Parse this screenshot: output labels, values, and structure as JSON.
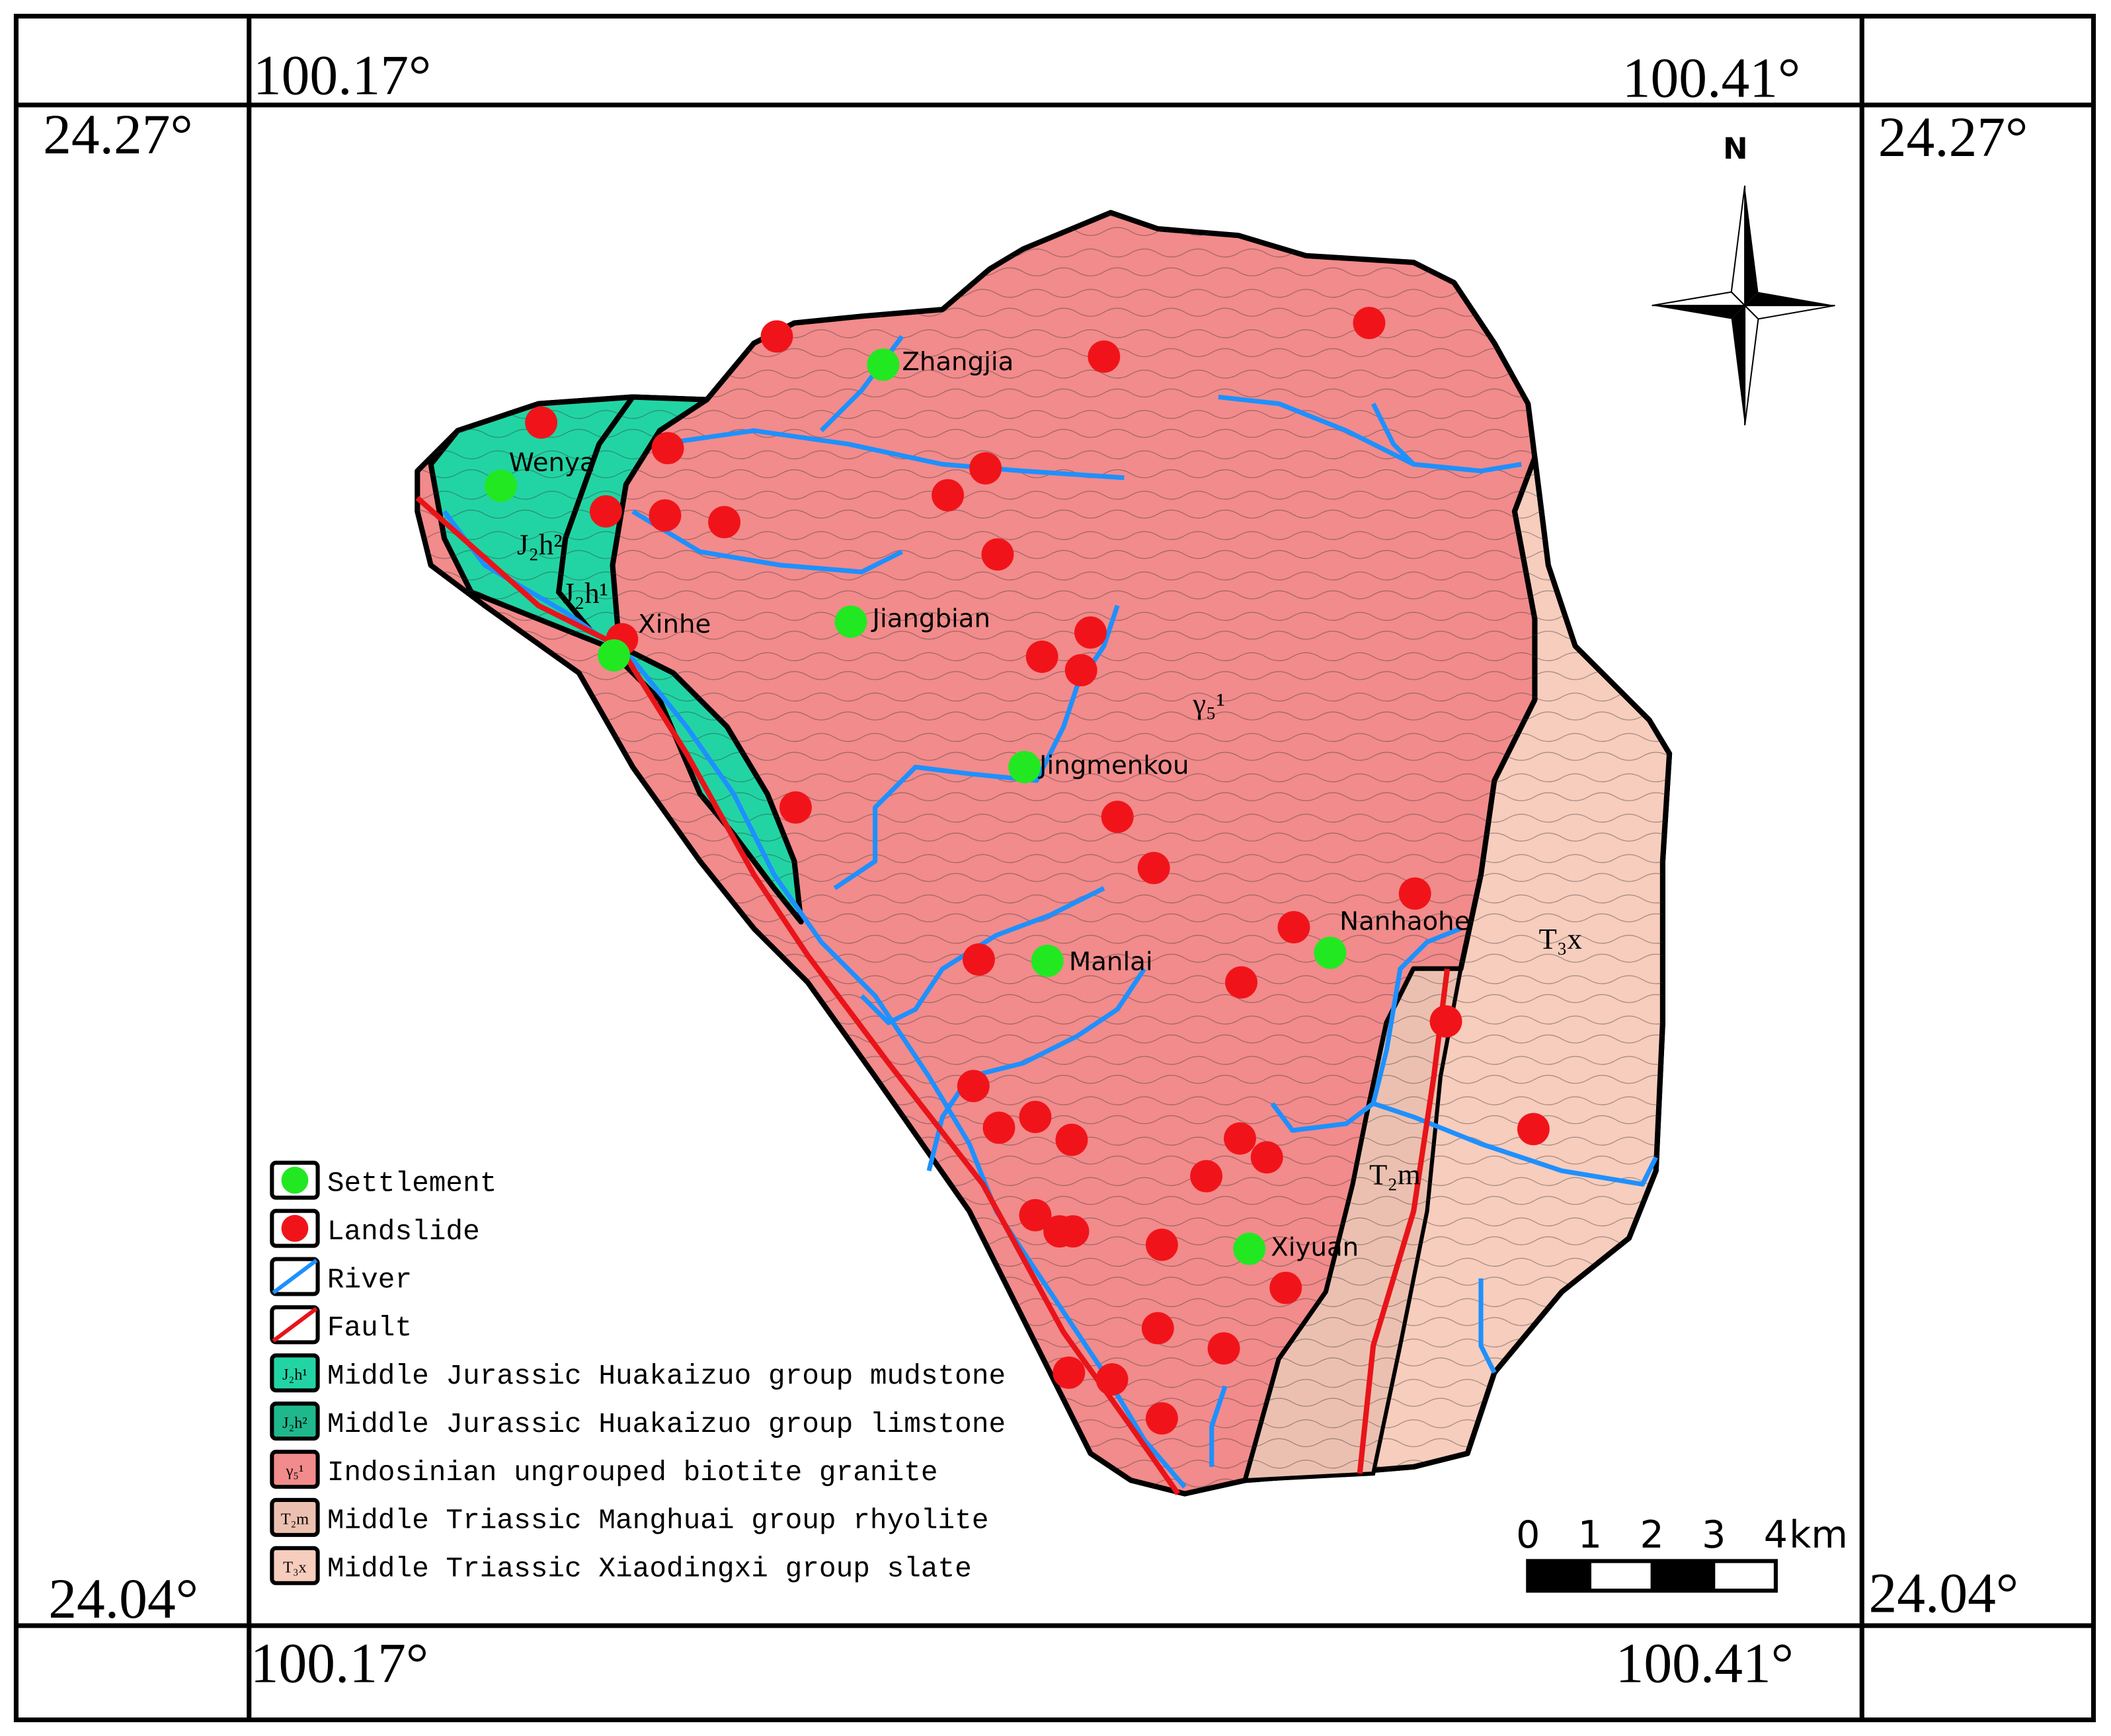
{
  "coordinates": {
    "top_left": "100.17°",
    "top_right": "100.41°",
    "bottom_left": "100.17°",
    "bottom_right": "100.41°",
    "left_top": "24.27°",
    "left_bottom": "24.04°",
    "right_top": "24.27°",
    "right_bottom": "24.04°"
  },
  "north_label": "N",
  "settlements": [
    "Zhangjia",
    "Wenya",
    "Xinhe",
    "Jiangbian",
    "Jingmenkou",
    "Manlai",
    "Nanhaohe",
    "Xiyuan"
  ],
  "map_labels": [
    "J₂h²",
    "J₂h¹",
    "γ₅¹",
    "T₃x",
    "T₂m"
  ],
  "legend": [
    {
      "label": "Settlement"
    },
    {
      "label": "Landslide"
    },
    {
      "label": "River"
    },
    {
      "label": "Fault"
    },
    {
      "symbol": "J₂h¹",
      "label": "Middle Jurassic Huakaizuo group mudstone"
    },
    {
      "symbol": "J₂h²",
      "label": "Middle Jurassic Huakaizuo group limstone"
    },
    {
      "symbol": "γ₅¹",
      "label": "Indosinian ungrouped biotite granite"
    },
    {
      "symbol": "T₂m",
      "label": "Middle Triassic Manghuai group rhyolite"
    },
    {
      "symbol": "T₃x",
      "label": "Middle Triassic Xiaodingxi group slate"
    }
  ],
  "scale_bar": {
    "ticks": [
      "0",
      "1",
      "2",
      "3",
      "4"
    ],
    "unit": "km"
  }
}
